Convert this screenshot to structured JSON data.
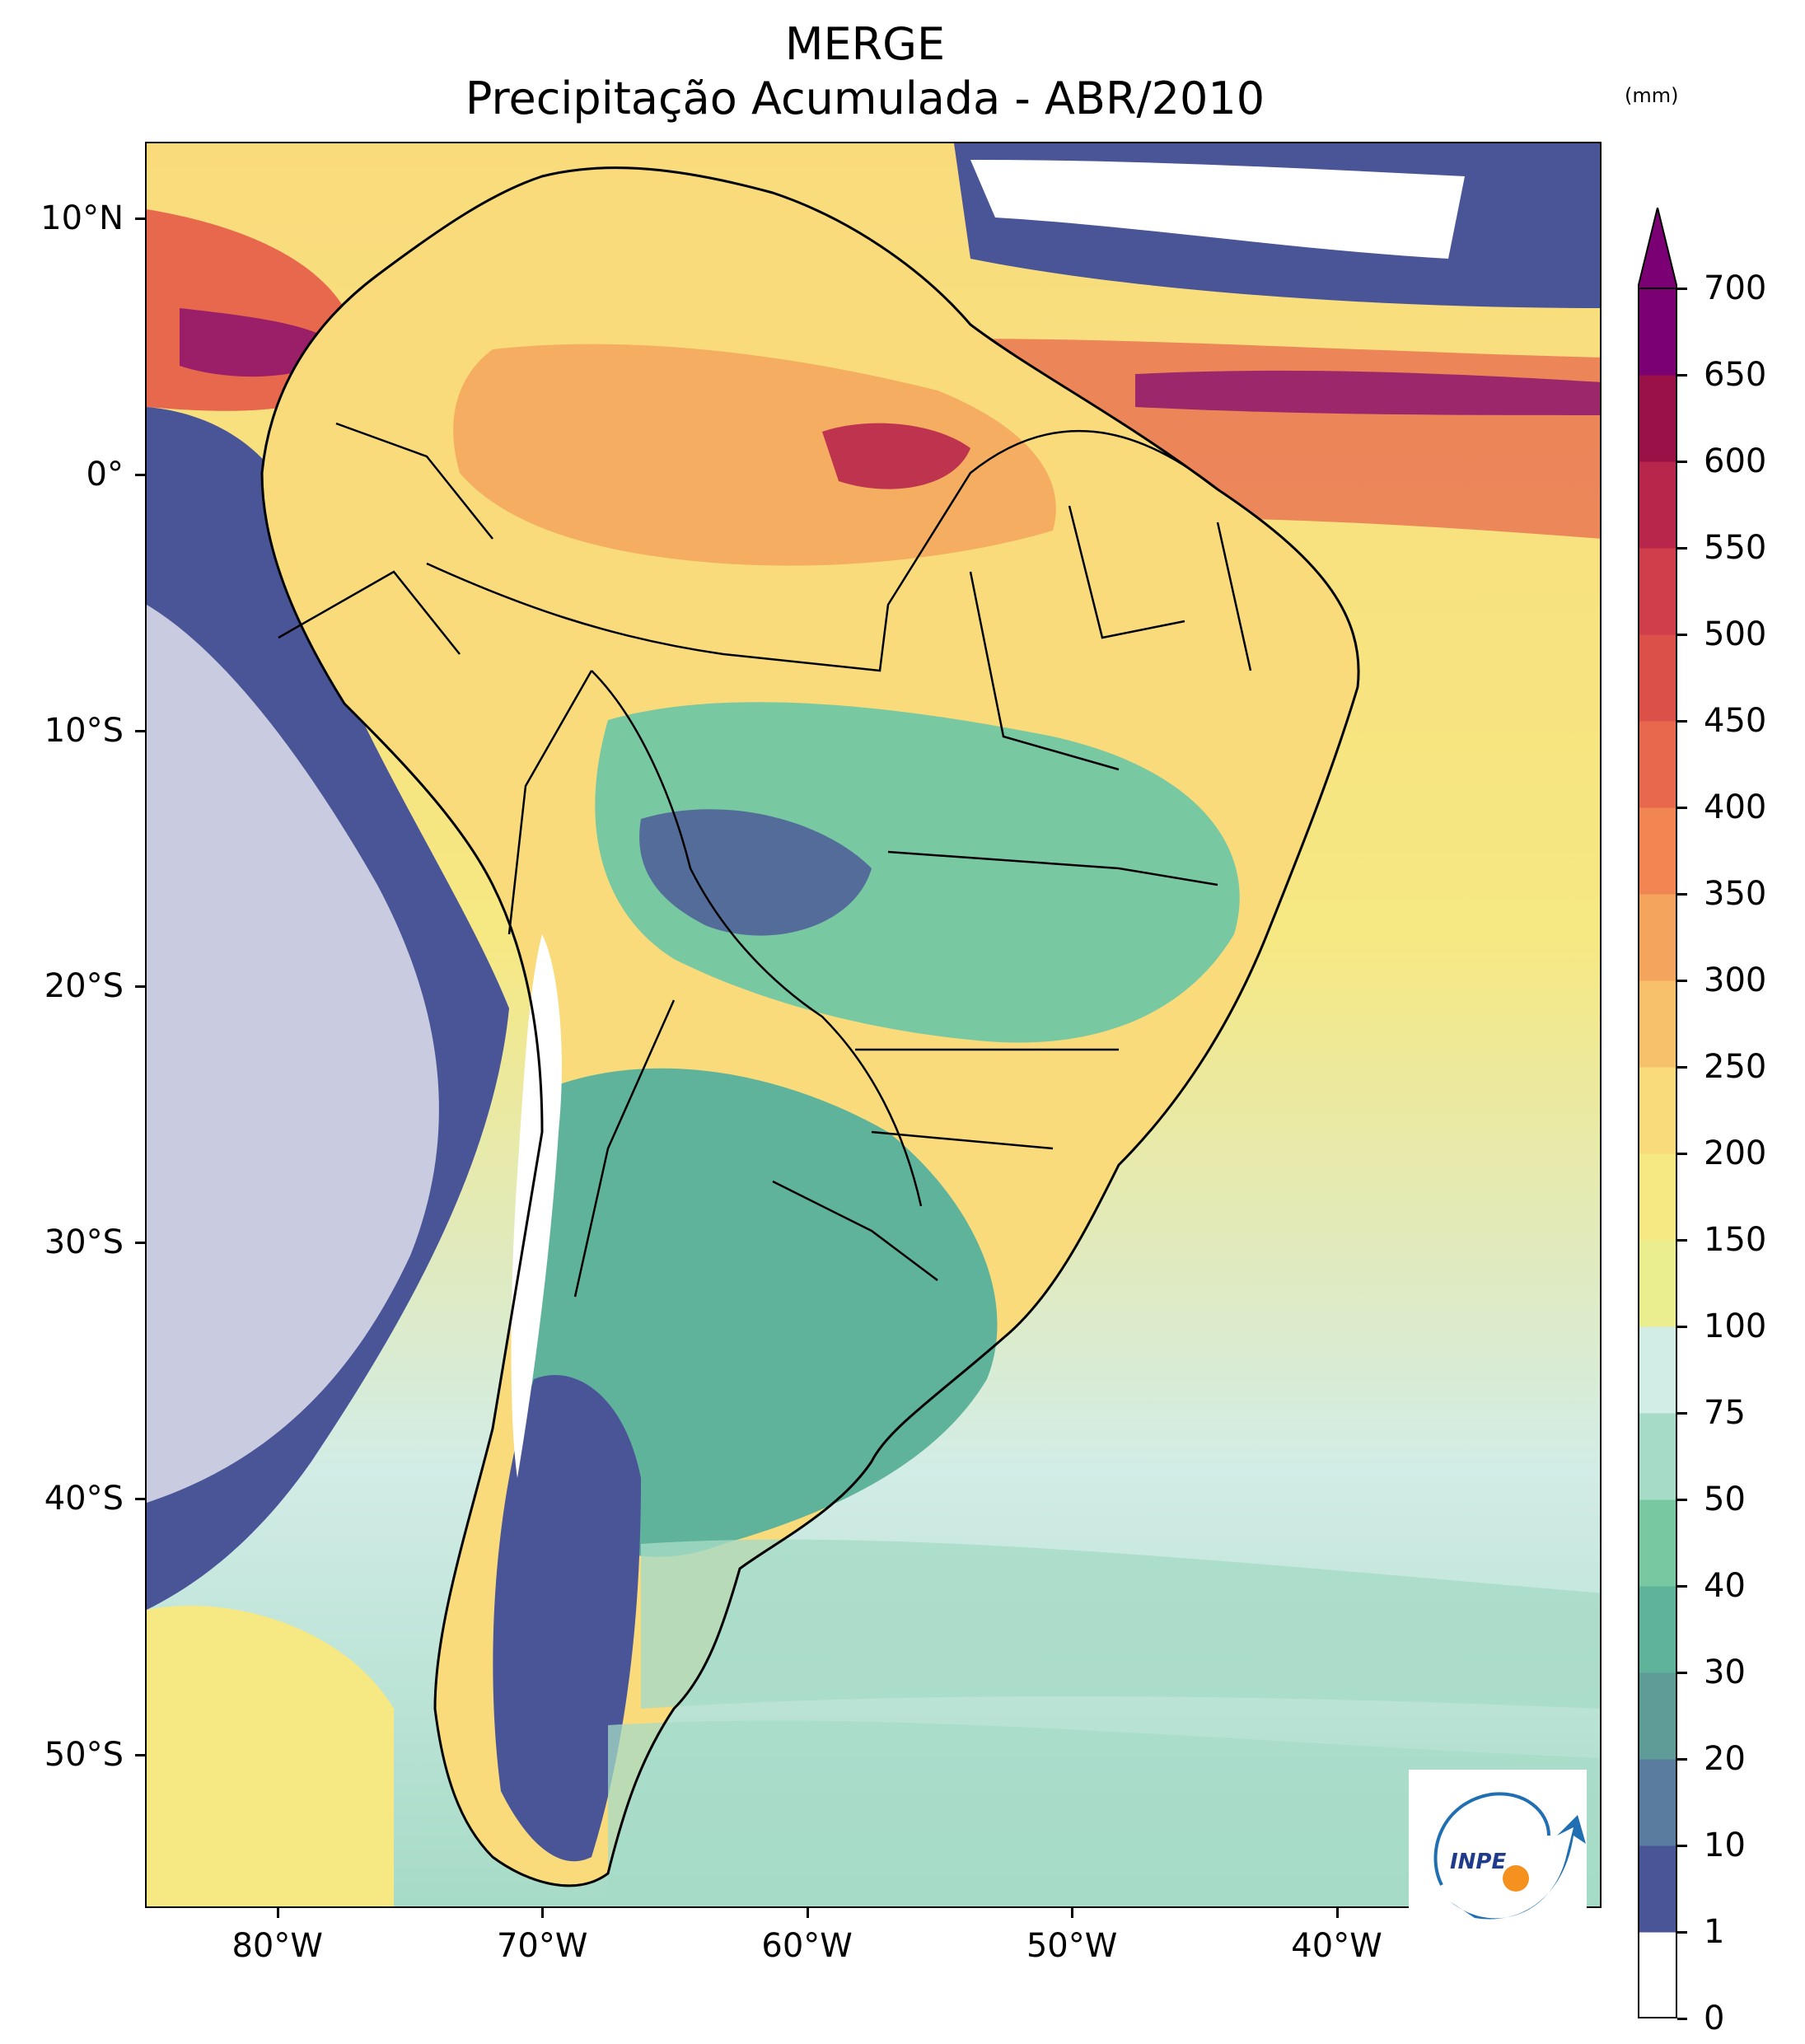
{
  "title": {
    "line1": "MERGE",
    "line2": "Precipitação Acumulada - ABR/2010"
  },
  "map": {
    "lat_ticks": [
      "10°N",
      "0°",
      "10°S",
      "20°S",
      "30°S",
      "40°S",
      "50°S"
    ],
    "lon_ticks": [
      "80°W",
      "70°W",
      "60°W",
      "50°W",
      "40°W"
    ],
    "lat_tick_values": [
      10,
      0,
      -10,
      -20,
      -30,
      -40,
      -50
    ],
    "lon_tick_values": [
      -80,
      -70,
      -60,
      -50,
      -40
    ],
    "extent": {
      "lon": [
        -85,
        -30
      ],
      "lat": [
        -56,
        13
      ]
    }
  },
  "colorbar": {
    "unit": "(mm)",
    "levels": [
      "0",
      "1",
      "10",
      "20",
      "30",
      "40",
      "50",
      "75",
      "100",
      "150",
      "200",
      "250",
      "300",
      "350",
      "400",
      "450",
      "500",
      "550",
      "600",
      "650",
      "700"
    ],
    "colors": [
      "#ffffff",
      "#4a5597",
      "#5a7c9e",
      "#5f9c98",
      "#5fb39a",
      "#78c8a2",
      "#a6dbc7",
      "#d2ece6",
      "#eaee8f",
      "#f6e882",
      "#f9db7c",
      "#f7c06a",
      "#f5a45d",
      "#f18652",
      "#e8684d",
      "#db5149",
      "#cf3e4a",
      "#b8264c",
      "#9a1148",
      "#7b0073"
    ],
    "extend_color": "#7b0073"
  },
  "logo": {
    "text": "INPE"
  }
}
